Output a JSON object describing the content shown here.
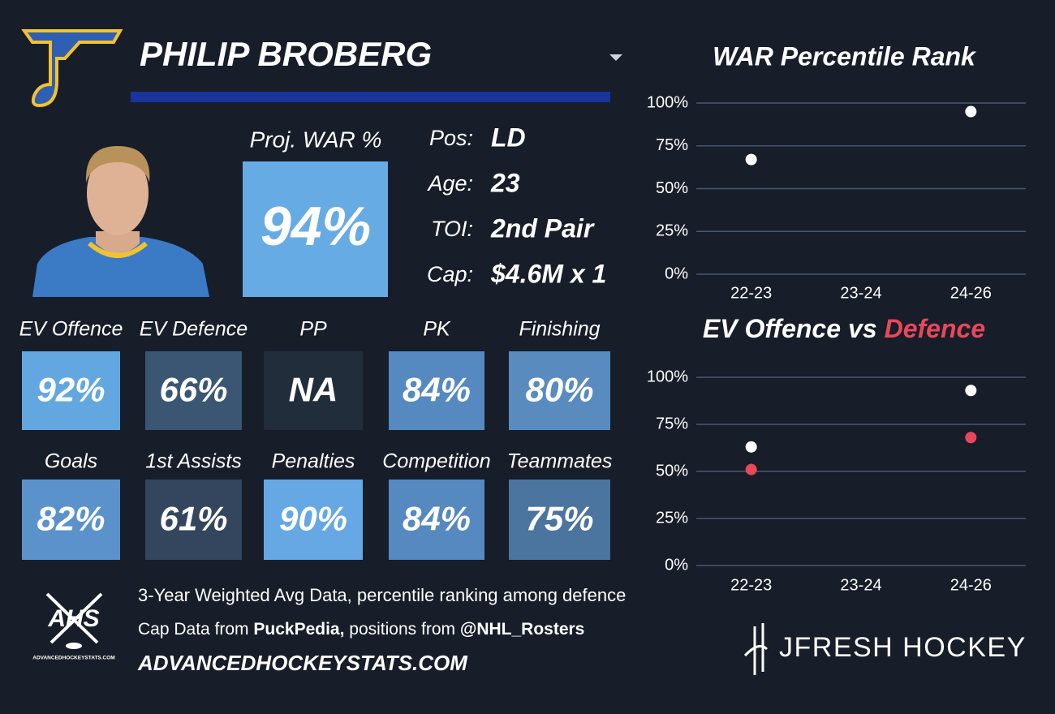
{
  "player": {
    "name": "PHILIP BROBERG",
    "proj_label": "Proj. WAR %",
    "proj_value": "94%",
    "proj_color": "#67abe4",
    "info": [
      {
        "label": "Pos:",
        "value": "LD"
      },
      {
        "label": "Age:",
        "value": "23"
      },
      {
        "label": "TOI:",
        "value": "2nd Pair"
      },
      {
        "label": "Cap:",
        "value": "$4.6M x 1"
      }
    ]
  },
  "tiles": [
    {
      "label": "EV Offence",
      "value": "92%",
      "color": "#63a7e0"
    },
    {
      "label": "EV Defence",
      "value": "66%",
      "color": "#3b5673"
    },
    {
      "label": "PP",
      "value": "NA",
      "color": "#222d3b"
    },
    {
      "label": "PK",
      "value": "84%",
      "color": "#5589c0"
    },
    {
      "label": "Finishing",
      "value": "80%",
      "color": "#5a8bbf"
    },
    {
      "label": "Goals",
      "value": "82%",
      "color": "#5b92cc"
    },
    {
      "label": "1st Assists",
      "value": "61%",
      "color": "#33465e"
    },
    {
      "label": "Penalties",
      "value": "90%",
      "color": "#65a8e3"
    },
    {
      "label": "Competition",
      "value": "84%",
      "color": "#5589c0"
    },
    {
      "label": "Teammates",
      "value": "75%",
      "color": "#4b749f"
    }
  ],
  "footer": {
    "note": "3-Year Weighted Avg Data, percentile ranking among defence",
    "credits": [
      "Cap Data from ",
      "PuckPedia,",
      " positions from ",
      "@NHL_Rosters"
    ],
    "site": "ADVANCEDHOCKEYSTATS.COM",
    "logo": "AHS",
    "logo_caption": "ADVANCEDHOCKEYSTATS.COM",
    "brand": "JFRESH HOCKEY"
  },
  "chart_data": [
    {
      "type": "scatter",
      "title": "WAR Percentile Rank",
      "categories": [
        "22-23",
        "23-24",
        "24-26"
      ],
      "series": [
        {
          "color": "#ffffff",
          "values": [
            67,
            null,
            95
          ]
        }
      ],
      "ylim": [
        0,
        100
      ],
      "yticks": [
        {
          "value": 0,
          "label": "0%"
        },
        {
          "value": 25,
          "label": "25%"
        },
        {
          "value": 50,
          "label": "50%"
        },
        {
          "value": 75,
          "label": "75%"
        },
        {
          "value": 100,
          "label": "100%"
        }
      ],
      "grid": true
    },
    {
      "type": "scatter",
      "title_joiner": "vs",
      "categories": [
        "22-23",
        "23-24",
        "24-26"
      ],
      "series": [
        {
          "name": "EV Offence",
          "color": "#ffffff",
          "values": [
            63,
            null,
            93
          ]
        },
        {
          "name": "Defence",
          "color": "#e8485a",
          "values": [
            51,
            null,
            68
          ]
        }
      ],
      "ylim": [
        0,
        100
      ],
      "yticks": [
        {
          "value": 0,
          "label": "0%"
        },
        {
          "value": 25,
          "label": "25%"
        },
        {
          "value": 50,
          "label": "50%"
        },
        {
          "value": 75,
          "label": "75%"
        },
        {
          "value": 100,
          "label": "100%"
        }
      ],
      "grid": true
    }
  ]
}
